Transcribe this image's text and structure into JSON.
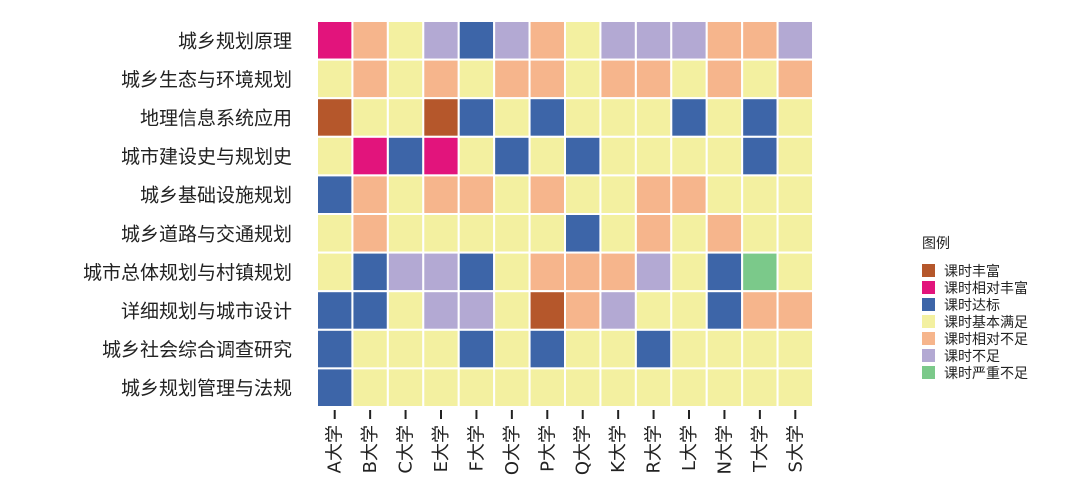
{
  "chart_data": {
    "type": "heatmap",
    "rows": [
      "城乡规划原理",
      "城乡生态与环境规划",
      "地理信息系统应用",
      "城市建设史与规划史",
      "城乡基础设施规划",
      "城乡道路与交通规划",
      "城市总体规划与村镇规划",
      "详细规划与城市设计",
      "城乡社会综合调查研究",
      "城乡规划管理与法规"
    ],
    "columns": [
      "A大学",
      "B大学",
      "C大学",
      "E大学",
      "F大学",
      "O大学",
      "P大学",
      "Q大学",
      "K大学",
      "R大学",
      "L大学",
      "N大学",
      "T大学",
      "S大学"
    ],
    "legend_title": "图例",
    "categories": [
      {
        "label": "课时丰富",
        "color": "#b5572b"
      },
      {
        "label": "课时相对丰富",
        "color": "#e2147c"
      },
      {
        "label": "课时达标",
        "color": "#3d65a8"
      },
      {
        "label": "课时基本满足",
        "color": "#f3f0a0"
      },
      {
        "label": "课时相对不足",
        "color": "#f6b58c"
      },
      {
        "label": "课时不足",
        "color": "#b3a9d3"
      },
      {
        "label": "课时严重不足",
        "color": "#7bc98a"
      }
    ],
    "values": [
      [
        "课时相对丰富",
        "课时相对不足",
        "课时基本满足",
        "课时不足",
        "课时达标",
        "课时不足",
        "课时相对不足",
        "课时基本满足",
        "课时不足",
        "课时不足",
        "课时不足",
        "课时相对不足",
        "课时相对不足",
        "课时不足"
      ],
      [
        "课时基本满足",
        "课时相对不足",
        "课时基本满足",
        "课时相对不足",
        "课时基本满足",
        "课时相对不足",
        "课时相对不足",
        "课时基本满足",
        "课时相对不足",
        "课时相对不足",
        "课时基本满足",
        "课时相对不足",
        "课时基本满足",
        "课时相对不足"
      ],
      [
        "课时丰富",
        "课时基本满足",
        "课时基本满足",
        "课时丰富",
        "课时达标",
        "课时基本满足",
        "课时达标",
        "课时基本满足",
        "课时基本满足",
        "课时基本满足",
        "课时达标",
        "课时基本满足",
        "课时达标",
        "课时基本满足"
      ],
      [
        "课时基本满足",
        "课时相对丰富",
        "课时达标",
        "课时相对丰富",
        "课时基本满足",
        "课时达标",
        "课时基本满足",
        "课时达标",
        "课时基本满足",
        "课时基本满足",
        "课时基本满足",
        "课时基本满足",
        "课时达标",
        "课时基本满足"
      ],
      [
        "课时达标",
        "课时相对不足",
        "课时基本满足",
        "课时相对不足",
        "课时相对不足",
        "课时基本满足",
        "课时相对不足",
        "课时基本满足",
        "课时基本满足",
        "课时相对不足",
        "课时相对不足",
        "课时基本满足",
        "课时基本满足",
        "课时基本满足"
      ],
      [
        "课时基本满足",
        "课时相对不足",
        "课时基本满足",
        "课时基本满足",
        "课时基本满足",
        "课时基本满足",
        "课时基本满足",
        "课时达标",
        "课时基本满足",
        "课时相对不足",
        "课时基本满足",
        "课时相对不足",
        "课时基本满足",
        "课时基本满足"
      ],
      [
        "课时基本满足",
        "课时达标",
        "课时不足",
        "课时不足",
        "课时达标",
        "课时基本满足",
        "课时相对不足",
        "课时相对不足",
        "课时相对不足",
        "课时不足",
        "课时基本满足",
        "课时达标",
        "课时严重不足",
        "课时基本满足"
      ],
      [
        "课时达标",
        "课时达标",
        "课时基本满足",
        "课时不足",
        "课时不足",
        "课时基本满足",
        "课时丰富",
        "课时相对不足",
        "课时不足",
        "课时基本满足",
        "课时基本满足",
        "课时达标",
        "课时相对不足",
        "课时相对不足"
      ],
      [
        "课时达标",
        "课时基本满足",
        "课时基本满足",
        "课时基本满足",
        "课时达标",
        "课时基本满足",
        "课时达标",
        "课时基本满足",
        "课时基本满足",
        "课时达标",
        "课时基本满足",
        "课时基本满足",
        "课时基本满足",
        "课时基本满足"
      ],
      [
        "课时达标",
        "课时基本满足",
        "课时基本满足",
        "课时基本满足",
        "课时基本满足",
        "课时基本满足",
        "课时基本满足",
        "课时基本满足",
        "课时基本满足",
        "课时基本满足",
        "课时基本满足",
        "课时基本满足",
        "课时基本满足",
        "课时基本满足"
      ]
    ]
  }
}
